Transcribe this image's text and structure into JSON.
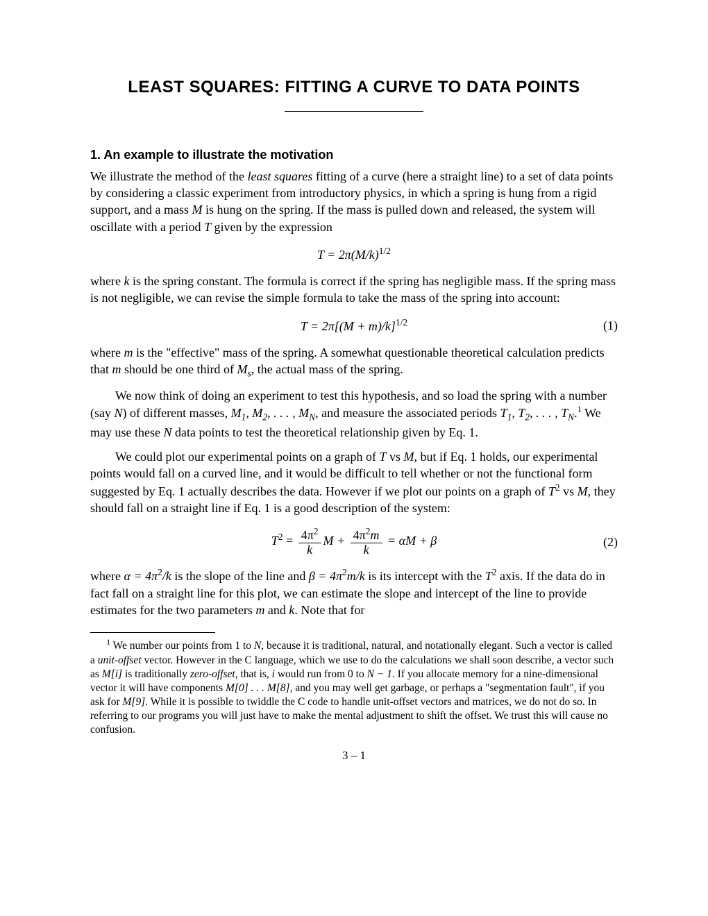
{
  "title": "LEAST SQUARES: FITTING A CURVE TO DATA POINTS",
  "section1": {
    "heading": "1.  An example to illustrate the motivation",
    "p1_a": "We illustrate the method of the ",
    "p1_b": "least squares",
    "p1_c": " fitting of a curve (here a straight line) to a set of data points by considering a classic experiment from introductory physics, in which a spring is hung from a rigid support, and a mass ",
    "p1_d": " is hung on the spring. If the mass is pulled down and released, the system will oscillate with a period ",
    "p1_e": " given by the expression",
    "eq1": "T = 2π(M/k)",
    "eq1_exp": "1/2",
    "p2_a": "where ",
    "p2_b": " is the spring constant. The formula is correct if the spring has negligible mass. If the spring mass is not negligible, we can revise the simple formula to take the mass of the spring into account:",
    "eq2": "T = 2π[(M + m)/k]",
    "eq2_exp": "1/2",
    "eq2_num": "(1)",
    "p3_a": "where ",
    "p3_b": " is the \"effective\" mass of the spring. A somewhat questionable theoretical calculation predicts that ",
    "p3_c": " should be one third of ",
    "p3_d": ", the actual mass of the spring.",
    "p4_a": "We now think of doing an experiment to test this hypothesis, and so load the spring with a number (say ",
    "p4_b": ") of different masses, ",
    "p4_c": ", and measure the associated periods ",
    "p4_d": " We may use these ",
    "p4_e": " data points to test the theoretical relationship given by Eq. 1.",
    "p5_a": "We could plot our experimental points on a graph of ",
    "p5_b": " vs ",
    "p5_c": ", but if Eq. 1 holds, our experimental points would fall on a curved line, and it would be difficult to tell whether or not the functional form suggested by Eq. 1 actually describes the data. However if we plot our points on a graph of ",
    "p5_d": " vs ",
    "p5_e": ", they should fall on a straight line if Eq. 1 is a good description of the system:",
    "eq3_lhs": "T",
    "eq3_eq": " = ",
    "eq3_f1_num": "4π",
    "eq3_f1_den": "k",
    "eq3_mid1": "M + ",
    "eq3_f2_num": "4π",
    "eq3_f2_den": "k",
    "eq3_mid2": "m",
    "eq3_tail": " = αM + β",
    "eq3_num": "(2)",
    "p6_a": "where ",
    "p6_b": " is the slope of the line and ",
    "p6_c": " is its intercept with the ",
    "p6_d": " axis. If the data do in fact fall on a straight line for this plot, we can estimate the slope and intercept of the line to provide estimates for the two parameters ",
    "p6_e": " and ",
    "p6_f": ". Note that for",
    "alpha_eq": "α = 4π",
    "alpha_tail": "/k",
    "beta_eq": "β = 4π",
    "beta_tail": "m/k"
  },
  "footnote": {
    "num": "1",
    "a": " We number our points from 1 to ",
    "b": ", because it is traditional, natural, and notationally elegant. Such a vector is called a ",
    "c": "unit-offset",
    "d": " vector. However in the C language, which we use to do the calculations we shall soon describe, a vector such as ",
    "e": " is traditionally ",
    "f": "zero-offset",
    "g": ", that is, ",
    "h": " would run from 0 to ",
    "i": ". If you allocate memory for a nine-dimensional vector it will have components ",
    "j": ", and you may well get garbage, or perhaps a \"segmentation fault\", if you ask for ",
    "k": ". While it is possible to twiddle the C code to handle unit-offset vectors and matrices, we do not do so. In referring to our programs you will just have to make the mental adjustment to shift the offset. We trust this will cause no confusion."
  },
  "pagenum": "3 – 1",
  "math": {
    "M": "M",
    "T": "T",
    "k": "k",
    "m": "m",
    "Ms": "M",
    "Ms_sub": "s",
    "N": "N",
    "i": "i",
    "Mlist": "M",
    "Tlist": "T",
    "Nminus1": "N − 1",
    "Mi": "M[i]",
    "M08": "M[0] . . . M[8]",
    "M9": "M[9]",
    "Tsq": "T",
    "two": "2",
    "pisq": "2"
  }
}
